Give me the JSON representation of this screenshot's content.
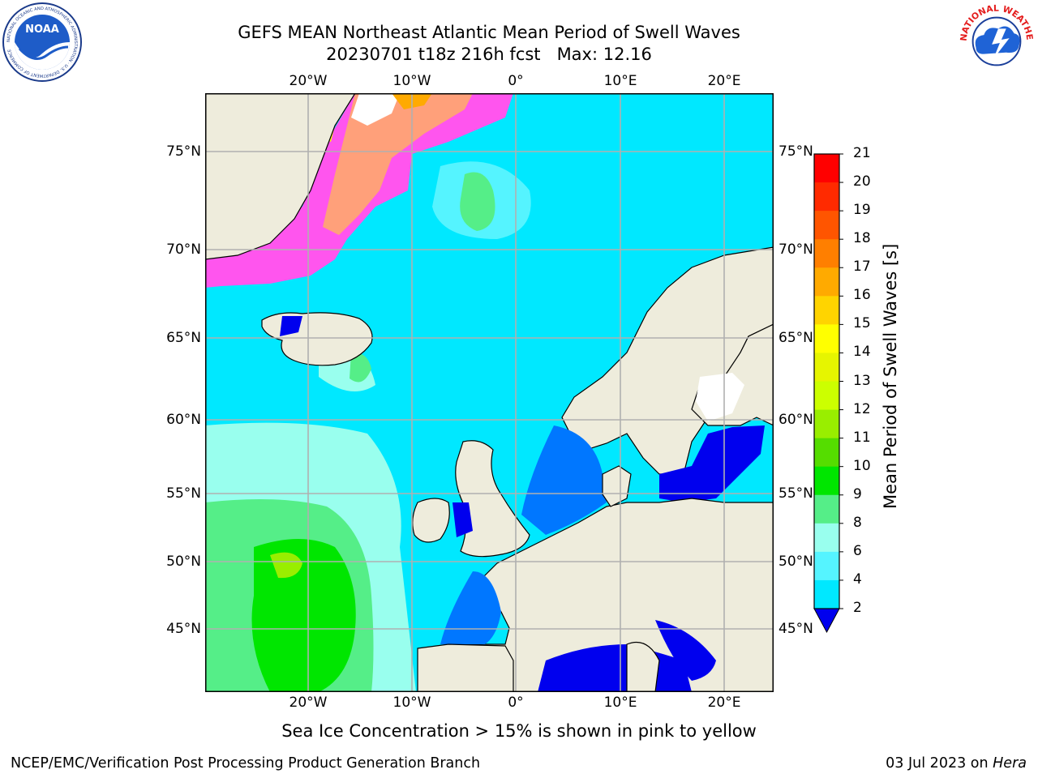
{
  "header": {
    "title_line1": "GEFS MEAN Northeast Atlantic Mean Period of Swell Waves",
    "title_line2": "20230701 t18z 216h fcst   Max: 12.16"
  },
  "logos": {
    "noaa": {
      "center_text": "NOAA",
      "ring_text": "NATIONAL OCEANIC AND ATMOSPHERIC ADMINISTRATION · U.S. DEPARTMENT OF COMMERCE"
    },
    "nws": {
      "ring_text": "NATIONAL WEATHER SERVICE"
    }
  },
  "axes": {
    "lon_labels": [
      "20°W",
      "10°W",
      "0°",
      "10°E",
      "20°E"
    ],
    "lat_labels": [
      "75°N",
      "70°N",
      "65°N",
      "60°N",
      "55°N",
      "50°N",
      "45°N"
    ],
    "lon_values": [
      -20,
      -10,
      0,
      10,
      20
    ],
    "lat_values": [
      75,
      70,
      65,
      60,
      55,
      50,
      45
    ]
  },
  "colorbar": {
    "title": "Mean Period of Swell Waves [s]",
    "labels": [
      "21",
      "20",
      "19",
      "18",
      "17",
      "16",
      "15",
      "14",
      "13",
      "12",
      "11",
      "10",
      "9",
      "8",
      "6",
      "4",
      "2"
    ],
    "colors_top_to_bottom": [
      "#ff0000",
      "#ff2a00",
      "#ff5500",
      "#ff7f00",
      "#ffaa00",
      "#ffd400",
      "#ffff00",
      "#e6f500",
      "#ccff00",
      "#99ee00",
      "#55dd00",
      "#00e600",
      "#55ee88",
      "#99ffee",
      "#55f4ff",
      "#00e8ff",
      "#0077ff"
    ],
    "extend_color": "#0000ee"
  },
  "colors": {
    "land": "#eeecdc",
    "coast": "#000000",
    "grid": "#b0b0b0",
    "ocean_base": "#00e8ff"
  },
  "caption": "Sea Ice Concentration > 15% is shown in pink to yellow",
  "footer": {
    "left": "NCEP/EMC/Verification Post Processing Product Generation Branch",
    "right_date": "03 Jul 2023 on ",
    "right_host": "Hera"
  }
}
